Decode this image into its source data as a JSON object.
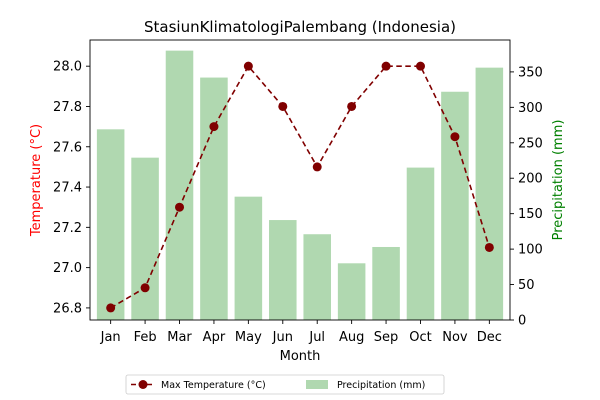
{
  "chart_data": {
    "type": "bar",
    "title": "StasiunKlimatologiPalembang (Indonesia)",
    "xlabel": "Month",
    "categories": [
      "Jan",
      "Feb",
      "Mar",
      "Apr",
      "May",
      "Jun",
      "Jul",
      "Aug",
      "Sep",
      "Oct",
      "Nov",
      "Dec"
    ],
    "left_axis": {
      "label": "Temperature (°C)",
      "color": "#ff0000",
      "ylim": [
        26.74,
        28.13
      ],
      "ticks": [
        "26.8",
        "27.0",
        "27.2",
        "27.4",
        "27.6",
        "27.8",
        "28.0"
      ]
    },
    "right_axis": {
      "label": "Precipitation (mm)",
      "color": "#008000",
      "ylim": [
        0,
        395
      ],
      "ticks": [
        "0",
        "50",
        "100",
        "150",
        "200",
        "250",
        "300",
        "350"
      ]
    },
    "series": [
      {
        "name": "Max Temperature (°C)",
        "type": "line",
        "axis": "left",
        "color": "#800000",
        "linestyle": "dashed",
        "marker": "circle",
        "values": [
          26.8,
          26.9,
          27.3,
          27.7,
          28.0,
          27.8,
          27.5,
          27.8,
          28.0,
          28.0,
          27.65,
          27.1
        ]
      },
      {
        "name": "Precipitation (mm)",
        "type": "bar",
        "axis": "right",
        "color": "#b0d8b0",
        "values": [
          269,
          229,
          380,
          342,
          174,
          141,
          121,
          80,
          103,
          215,
          322,
          356
        ]
      }
    ],
    "grid": false,
    "legend_position": "bottom-center"
  }
}
